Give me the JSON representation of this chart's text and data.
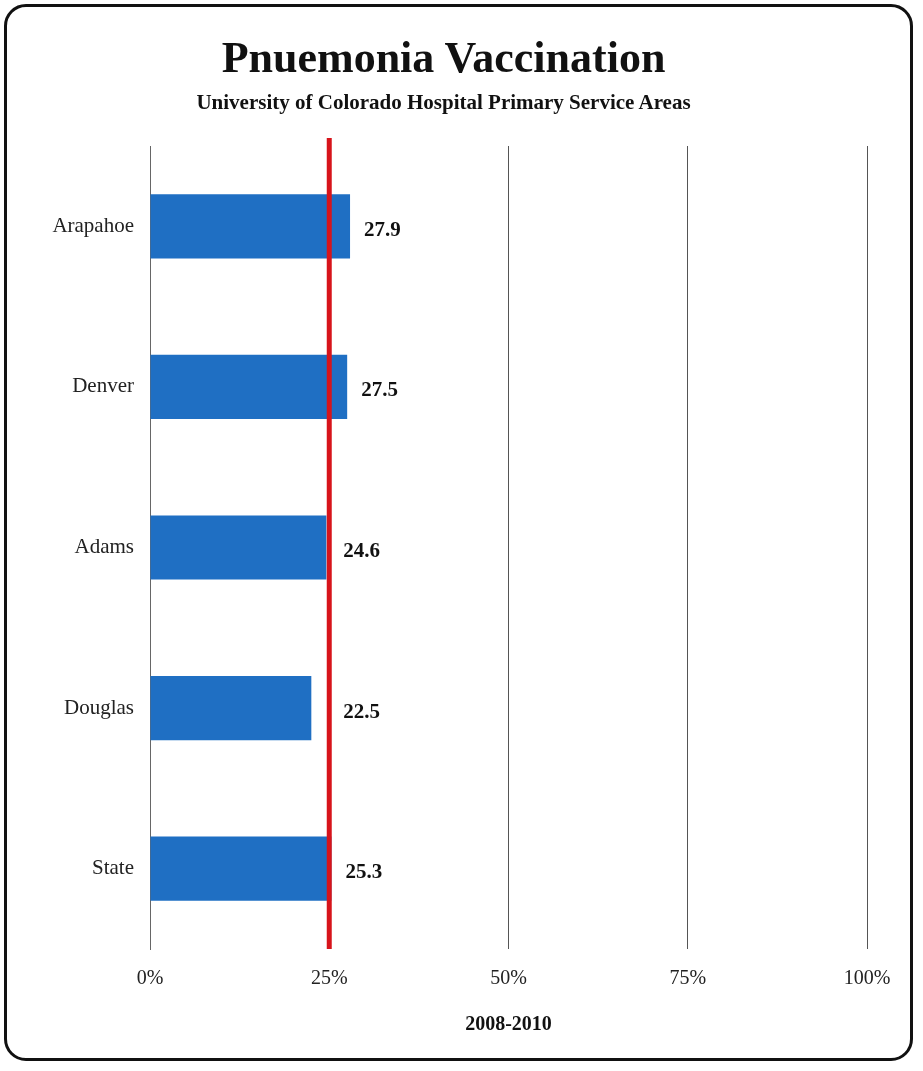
{
  "chart_data": {
    "type": "bar",
    "orientation": "horizontal",
    "title": "Pnuemonia Vaccination",
    "subtitle": "University of Colorado Hospital Primary Service Areas",
    "xlabel": "2008-2010",
    "categories": [
      "Arapahoe",
      "Denver",
      "Adams",
      "Douglas",
      "State"
    ],
    "values": [
      27.9,
      27.5,
      24.6,
      22.5,
      25.3
    ],
    "color": "#1f6fc3",
    "xlim": [
      0,
      100
    ],
    "xticks": [
      {
        "value": 0,
        "label": "0%"
      },
      {
        "value": 25,
        "label": "25%"
      },
      {
        "value": 50,
        "label": "50%"
      },
      {
        "value": 75,
        "label": "75%"
      },
      {
        "value": 100,
        "label": "100%"
      }
    ],
    "grid": "x",
    "legend": false,
    "data_labels": true,
    "ref_lines": [
      {
        "axis": "x",
        "value": 25,
        "color": "#d7141b"
      }
    ]
  }
}
